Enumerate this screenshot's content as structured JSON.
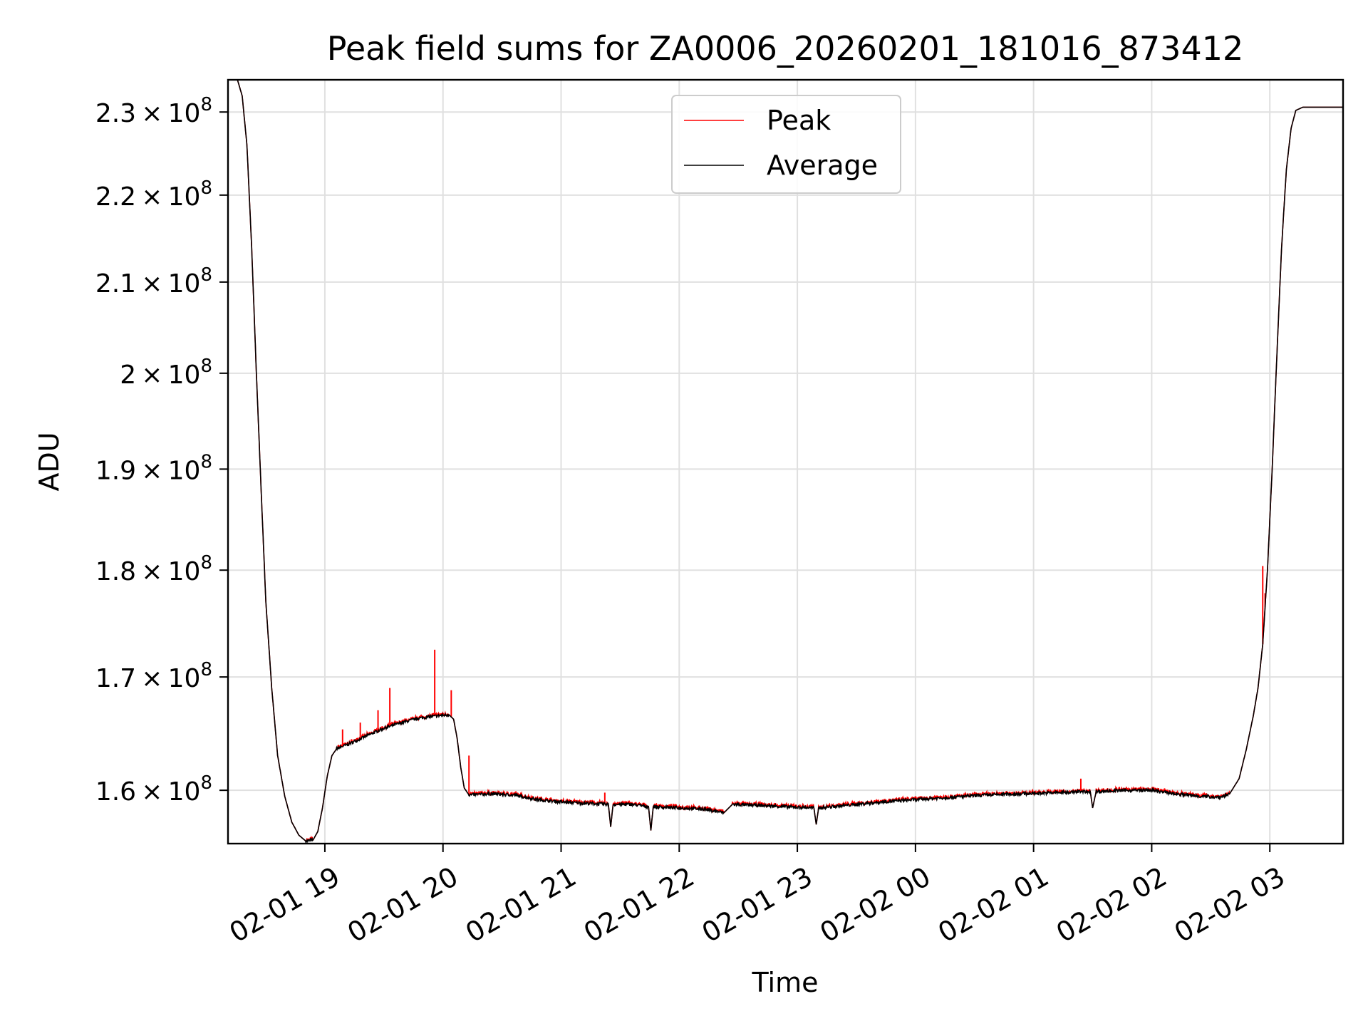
{
  "chart_data": {
    "type": "line",
    "title": "Peak field sums for ZA0006_20260201_181016_873412",
    "xlabel": "Time",
    "ylabel": "ADU",
    "y_scale": "log",
    "grid": true,
    "legend_position": "upper-center",
    "xlim_hours": [
      18.18,
      27.62
    ],
    "ylim": [
      155500000,
      234000000
    ],
    "x_ticks": [
      {
        "hour": 19,
        "label": "02-01 19"
      },
      {
        "hour": 20,
        "label": "02-01 20"
      },
      {
        "hour": 21,
        "label": "02-01 21"
      },
      {
        "hour": 22,
        "label": "02-01 22"
      },
      {
        "hour": 23,
        "label": "02-01 23"
      },
      {
        "hour": 24,
        "label": "02-02 00"
      },
      {
        "hour": 25,
        "label": "02-02 01"
      },
      {
        "hour": 26,
        "label": "02-02 02"
      },
      {
        "hour": 27,
        "label": "02-02 03"
      }
    ],
    "y_ticks": [
      {
        "value": 160000000,
        "mantissa": "1.6",
        "exponent": "8"
      },
      {
        "value": 170000000,
        "mantissa": "1.7",
        "exponent": "8"
      },
      {
        "value": 180000000,
        "mantissa": "1.8",
        "exponent": "8"
      },
      {
        "value": 190000000,
        "mantissa": "1.9",
        "exponent": "8"
      },
      {
        "value": 200000000,
        "mantissa": "2",
        "exponent": "8"
      },
      {
        "value": 210000000,
        "mantissa": "2.1",
        "exponent": "8"
      },
      {
        "value": 220000000,
        "mantissa": "2.2",
        "exponent": "8"
      },
      {
        "value": 230000000,
        "mantissa": "2.3",
        "exponent": "8"
      }
    ],
    "series": [
      {
        "name": "Average",
        "color": "#000000",
        "points": [
          [
            18.18,
            234000000
          ],
          [
            18.26,
            234000000
          ],
          [
            18.3,
            232000000
          ],
          [
            18.34,
            226000000
          ],
          [
            18.38,
            214000000
          ],
          [
            18.42,
            200000000
          ],
          [
            18.46,
            188000000
          ],
          [
            18.5,
            177000000
          ],
          [
            18.55,
            169000000
          ],
          [
            18.6,
            163000000
          ],
          [
            18.66,
            159500000
          ],
          [
            18.72,
            157300000
          ],
          [
            18.78,
            156200000
          ],
          [
            18.84,
            155700000
          ],
          [
            18.9,
            155800000
          ],
          [
            18.94,
            156500000
          ],
          [
            18.98,
            158500000
          ],
          [
            19.02,
            161200000
          ],
          [
            19.06,
            163000000
          ],
          [
            19.1,
            163600000
          ],
          [
            19.2,
            164000000
          ],
          [
            19.35,
            164700000
          ],
          [
            19.5,
            165400000
          ],
          [
            19.65,
            165900000
          ],
          [
            19.8,
            166300000
          ],
          [
            19.95,
            166500000
          ],
          [
            20.05,
            166600000
          ],
          [
            20.09,
            166200000
          ],
          [
            20.12,
            164500000
          ],
          [
            20.15,
            162000000
          ],
          [
            20.18,
            160200000
          ],
          [
            20.22,
            159600000
          ],
          [
            20.4,
            159700000
          ],
          [
            20.6,
            159600000
          ],
          [
            20.8,
            159200000
          ],
          [
            21.0,
            159000000
          ],
          [
            21.2,
            158900000
          ],
          [
            21.4,
            158800000
          ],
          [
            21.42,
            156900000
          ],
          [
            21.44,
            158800000
          ],
          [
            21.6,
            158800000
          ],
          [
            21.74,
            158600000
          ],
          [
            21.76,
            156600000
          ],
          [
            21.78,
            158600000
          ],
          [
            22.0,
            158500000
          ],
          [
            22.2,
            158400000
          ],
          [
            22.38,
            158100000
          ],
          [
            22.45,
            158800000
          ],
          [
            22.7,
            158700000
          ],
          [
            22.9,
            158600000
          ],
          [
            23.14,
            158500000
          ],
          [
            23.16,
            157100000
          ],
          [
            23.18,
            158500000
          ],
          [
            23.4,
            158700000
          ],
          [
            23.7,
            159000000
          ],
          [
            24.0,
            159200000
          ],
          [
            24.3,
            159400000
          ],
          [
            24.6,
            159600000
          ],
          [
            24.9,
            159700000
          ],
          [
            25.2,
            159800000
          ],
          [
            25.48,
            159900000
          ],
          [
            25.5,
            158500000
          ],
          [
            25.53,
            159900000
          ],
          [
            25.8,
            160000000
          ],
          [
            26.0,
            160000000
          ],
          [
            26.2,
            159700000
          ],
          [
            26.4,
            159500000
          ],
          [
            26.58,
            159400000
          ],
          [
            26.66,
            159700000
          ],
          [
            26.74,
            161000000
          ],
          [
            26.8,
            163500000
          ],
          [
            26.86,
            166500000
          ],
          [
            26.9,
            169000000
          ],
          [
            26.94,
            173000000
          ],
          [
            26.98,
            180000000
          ],
          [
            27.02,
            190000000
          ],
          [
            27.06,
            202000000
          ],
          [
            27.1,
            214000000
          ],
          [
            27.14,
            223000000
          ],
          [
            27.18,
            228000000
          ],
          [
            27.22,
            230200000
          ],
          [
            27.28,
            230600000
          ],
          [
            27.62,
            230600000
          ]
        ]
      },
      {
        "name": "Peak",
        "color": "#ff0000",
        "spikes": [
          [
            19.15,
            165300000
          ],
          [
            19.3,
            165900000
          ],
          [
            19.45,
            167000000
          ],
          [
            19.55,
            169000000
          ],
          [
            19.93,
            172500000
          ],
          [
            20.07,
            168800000
          ],
          [
            20.22,
            163000000
          ],
          [
            21.37,
            159800000
          ],
          [
            25.4,
            161000000
          ],
          [
            26.94,
            180400000
          ],
          [
            26.96,
            177800000
          ]
        ]
      }
    ]
  }
}
